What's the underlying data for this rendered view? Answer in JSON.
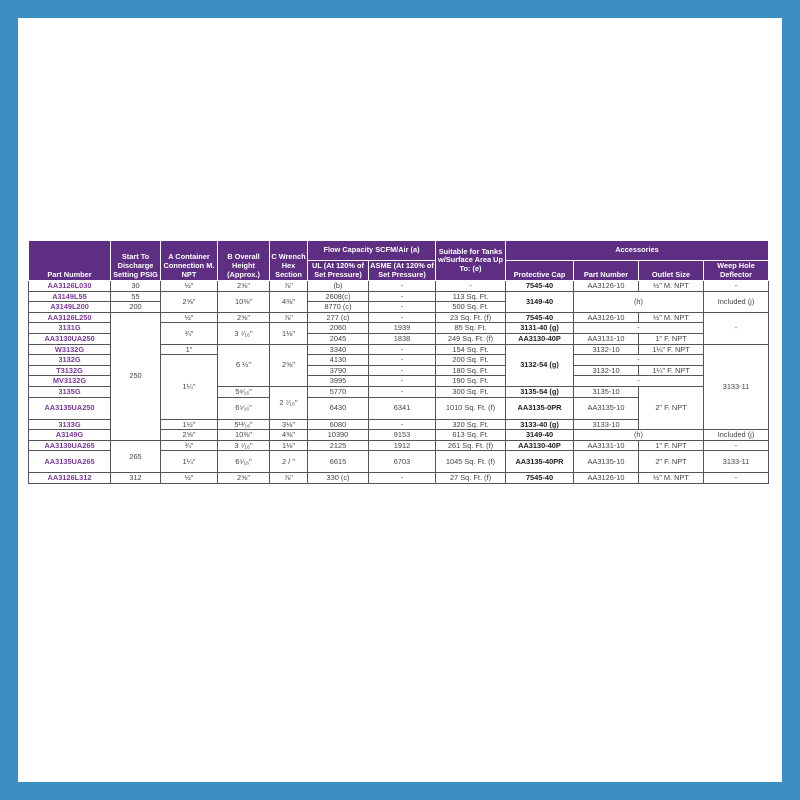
{
  "colors": {
    "frame": "#3b8fc2",
    "header": "#5e2e83",
    "part_number_text": "#7a3b9b"
  },
  "headers": {
    "part_number": "Part Number",
    "start_to_discharge": "Start To Discharge Setting PSIG",
    "a": "A Container Connection M. NPT",
    "b": "B Overall Height (Approx.)",
    "c": "C Wrench Hex Section",
    "flow_capacity": "Flow Capacity SCFM/Air (a)",
    "ul": "UL (At 120% of Set Pressure)",
    "asme": "ASME (At 120% of Set Pressure)",
    "suitable": "Suitable for Tanks w/Surface Area Up To: (e)",
    "accessories": "Accessories",
    "protective_cap": "Protective Cap",
    "acc_part_number": "Part Number",
    "outlet_size": "Outlet Size",
    "weep_hole": "Weep Hole Deflector"
  },
  "rows": [
    {
      "cells": [
        {
          "t": "AA3126L030",
          "k": "pn"
        },
        {
          "t": "30"
        },
        {
          "t": "½\""
        },
        {
          "t": "2⅝\""
        },
        {
          "t": "⅞\""
        },
        {
          "t": "(b)"
        },
        {
          "t": "-"
        },
        {
          "t": "-"
        },
        {
          "t": "7545-40",
          "k": "b"
        },
        {
          "t": "AA3126-10"
        },
        {
          "t": "½\" M. NPT"
        },
        {
          "t": "-"
        }
      ]
    },
    {
      "cells": [
        {
          "t": "A3149L55",
          "k": "pn"
        },
        {
          "t": "55"
        },
        {
          "t": "2⅝\"",
          "rs": 2
        },
        {
          "t": "10⅜\"",
          "rs": 2
        },
        {
          "t": "4⅜\"",
          "rs": 2
        },
        {
          "t": "2608(c)"
        },
        {
          "t": "-"
        },
        {
          "t": "113 Sq. Ft."
        },
        {
          "t": "3149-40",
          "k": "b",
          "rs": 2
        },
        {
          "t": "(h)",
          "rs": 2,
          "cs": 2
        },
        {
          "t": "Included (j)",
          "rs": 2
        }
      ]
    },
    {
      "cells": [
        {
          "t": "A3149L200",
          "k": "pn"
        },
        {
          "t": "200"
        },
        {
          "t": "8770 (c)"
        },
        {
          "t": "-"
        },
        {
          "t": "500 Sq. Ft."
        }
      ]
    },
    {
      "cells": [
        {
          "t": "AA3126L250",
          "k": "pn"
        },
        {
          "t": "250",
          "rs": 11
        },
        {
          "t": "½\""
        },
        {
          "t": "2⅝\""
        },
        {
          "t": "⅞\""
        },
        {
          "t": "277 (c)"
        },
        {
          "t": "-"
        },
        {
          "t": "23 Sq. Ft. (f)"
        },
        {
          "t": "7545-40",
          "k": "b"
        },
        {
          "t": "AA3126-10"
        },
        {
          "t": "½\" M. NPT"
        },
        {
          "t": "-",
          "rs": 3
        }
      ]
    },
    {
      "cells": [
        {
          "t": "3131G",
          "k": "pn"
        },
        {
          "t": "¾\"",
          "rs": 2
        },
        {
          "t": "3 ⁷⁄₁₆\"",
          "rs": 2
        },
        {
          "t": "1⅛\"",
          "rs": 2
        },
        {
          "t": "2060"
        },
        {
          "t": "1939"
        },
        {
          "t": "85 Sq. Ft."
        },
        {
          "t": "3131-40 (g)",
          "k": "b"
        },
        {
          "t": "-",
          "cs": 2
        }
      ]
    },
    {
      "cells": [
        {
          "t": "AA3130UA250",
          "k": "pn"
        },
        {
          "t": "2045"
        },
        {
          "t": "1838"
        },
        {
          "t": "249 Sq. Ft. (f)"
        },
        {
          "t": "AA3130-40P",
          "k": "b"
        },
        {
          "t": "AA3131-10"
        },
        {
          "t": "1\" F. NPT"
        }
      ]
    },
    {
      "cells": [
        {
          "t": "W3132G",
          "k": "pn"
        },
        {
          "t": "1\""
        },
        {
          "t": "6 ½\"",
          "rs": 4
        },
        {
          "t": "2⅝\"",
          "rs": 4
        },
        {
          "t": "3340"
        },
        {
          "t": "-"
        },
        {
          "t": "154 Sq. Ft."
        },
        {
          "t": "3132-54 (g)",
          "k": "b",
          "rs": 4
        },
        {
          "t": "3132-10"
        },
        {
          "t": "1¼\" F. NPT"
        },
        {
          "t": "3133-11",
          "rs": 7
        }
      ]
    },
    {
      "cells": [
        {
          "t": "3132G",
          "k": "pn"
        },
        {
          "t": "1¼\"",
          "rs": 5
        },
        {
          "t": "4130"
        },
        {
          "t": "-"
        },
        {
          "t": "200 Sq. Ft."
        },
        {
          "t": "-",
          "cs": 2
        }
      ]
    },
    {
      "cells": [
        {
          "t": "T3132G",
          "k": "pn"
        },
        {
          "t": "3790"
        },
        {
          "t": "-"
        },
        {
          "t": "180 Sq. Ft."
        },
        {
          "t": "3132-10"
        },
        {
          "t": "1¼\" F. NPT"
        }
      ]
    },
    {
      "cells": [
        {
          "t": "MV3132G",
          "k": "pn"
        },
        {
          "t": "3995"
        },
        {
          "t": "-"
        },
        {
          "t": "190 Sq. Ft."
        },
        {
          "t": "-",
          "cs": 2
        }
      ]
    },
    {
      "cells": [
        {
          "t": "3135G",
          "k": "pn"
        },
        {
          "t": "5⁹⁄₁₆\""
        },
        {
          "t": "2 ⁷⁄₁₆\"",
          "rs": 2
        },
        {
          "t": "5770"
        },
        {
          "t": "-"
        },
        {
          "t": "300 Sq. Ft."
        },
        {
          "t": "3135-54 (g)",
          "k": "b"
        },
        {
          "t": "3135-10"
        },
        {
          "t": "2\" F. NPT",
          "rs": 3
        }
      ]
    },
    {
      "tall": true,
      "cells": [
        {
          "t": "AA3135UA250",
          "k": "pn"
        },
        {
          "t": "6⁵⁄₁₆\""
        },
        {
          "t": "6430"
        },
        {
          "t": "6341"
        },
        {
          "t": "1010 Sq. Ft. (f)"
        },
        {
          "t": "AA3135-0PR",
          "k": "b"
        },
        {
          "t": "AA3135-10"
        }
      ]
    },
    {
      "cells": [
        {
          "t": "3133G",
          "k": "pn"
        },
        {
          "t": "1½\""
        },
        {
          "t": "5¹³⁄₁₆\""
        },
        {
          "t": "3⅛\""
        },
        {
          "t": "6080"
        },
        {
          "t": "-"
        },
        {
          "t": "320 Sq. Ft."
        },
        {
          "t": "3133-40 (g)",
          "k": "b"
        },
        {
          "t": "3133-10"
        }
      ]
    },
    {
      "cells": [
        {
          "t": "A3149G",
          "k": "pn"
        },
        {
          "t": "2⅝\""
        },
        {
          "t": "10⅜\""
        },
        {
          "t": "4⅜\""
        },
        {
          "t": "10390"
        },
        {
          "t": "9153"
        },
        {
          "t": "613 Sq. Ft."
        },
        {
          "t": "3149-40",
          "k": "b"
        },
        {
          "t": "(h)",
          "cs": 2
        },
        {
          "t": "Included (j)"
        }
      ]
    },
    {
      "cells": [
        {
          "t": "AA3130UA265",
          "k": "pn"
        },
        {
          "t": "265",
          "rs": 2
        },
        {
          "t": "¾\""
        },
        {
          "t": "3 ⁷⁄₁₆\""
        },
        {
          "t": "1⅛\""
        },
        {
          "t": "2125"
        },
        {
          "t": "1912"
        },
        {
          "t": "261 Sq. Ft. (f)"
        },
        {
          "t": "AA3130-40P",
          "k": "b"
        },
        {
          "t": "AA3131-10"
        },
        {
          "t": "1\" F. NPT"
        },
        {
          "t": "-"
        }
      ]
    },
    {
      "tall": true,
      "cells": [
        {
          "t": "AA3135UA265",
          "k": "pn"
        },
        {
          "t": "1¼\""
        },
        {
          "t": "6⁵⁄₁₆\""
        },
        {
          "t": "2 / \""
        },
        {
          "t": "6615"
        },
        {
          "t": "6703"
        },
        {
          "t": "1045 Sq. Ft. (f)"
        },
        {
          "t": "AA3135-40PR",
          "k": "b"
        },
        {
          "t": "AA3135-10"
        },
        {
          "t": "2\" F. NPT"
        },
        {
          "t": "3133-11"
        }
      ]
    },
    {
      "cells": [
        {
          "t": "AA3126L312",
          "k": "pn"
        },
        {
          "t": "312"
        },
        {
          "t": "½\""
        },
        {
          "t": "2⅝\""
        },
        {
          "t": "⅞\""
        },
        {
          "t": "330 (c)"
        },
        {
          "t": "-"
        },
        {
          "t": "27 Sq. Ft. (f)"
        },
        {
          "t": "7545-40",
          "k": "b"
        },
        {
          "t": "AA3126-10"
        },
        {
          "t": "½\" M. NPT"
        },
        {
          "t": "-"
        }
      ]
    }
  ]
}
